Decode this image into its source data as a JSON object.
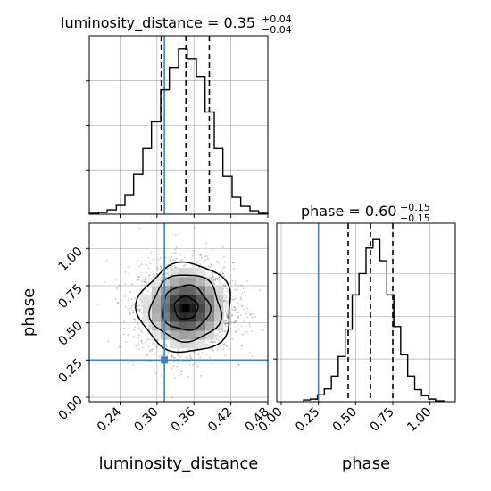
{
  "chart_data": {
    "type": "corner",
    "parameters": [
      "luminosity_distance",
      "phase"
    ],
    "titles": [
      {
        "param": "luminosity_distance",
        "label": "luminosity_distance = 0.35",
        "median": 0.35,
        "plus": "+0.04",
        "minus": "−0.04"
      },
      {
        "param": "phase",
        "label": "phase = 0.60",
        "median": 0.6,
        "plus": "+0.15",
        "minus": "−0.15"
      }
    ],
    "truths": {
      "luminosity_distance": 0.312,
      "phase": 0.25
    },
    "truth_color": "#4682b4",
    "quantiles": {
      "luminosity_distance": [
        0.307,
        0.347,
        0.385
      ],
      "phase": [
        0.45,
        0.6,
        0.75
      ]
    },
    "axes": {
      "luminosity_distance": {
        "label": "luminosity_distance",
        "range": [
          0.19,
          0.48
        ],
        "ticks": [
          0.24,
          0.3,
          0.36,
          0.42,
          0.48
        ],
        "tick_labels": [
          "0.24",
          "0.30",
          "0.36",
          "0.42",
          "0.48"
        ]
      },
      "phase": {
        "label": "phase",
        "range": [
          -0.03,
          1.17
        ],
        "ticks": [
          0.0,
          0.25,
          0.5,
          0.75,
          1.0
        ],
        "tick_labels": [
          "0.00",
          "0.25",
          "0.50",
          "0.75",
          "1.00"
        ]
      }
    },
    "hist_luminosity_distance": {
      "bin_edges": [
        0.19,
        0.205,
        0.219,
        0.234,
        0.248,
        0.262,
        0.277,
        0.291,
        0.306,
        0.32,
        0.335,
        0.349,
        0.364,
        0.378,
        0.393,
        0.407,
        0.422,
        0.436,
        0.451,
        0.465,
        0.48
      ],
      "counts": [
        1,
        2,
        5,
        10,
        22,
        45,
        74,
        104,
        140,
        165,
        186,
        175,
        155,
        115,
        74,
        43,
        19,
        9,
        4,
        1
      ]
    },
    "hist_phase": {
      "bin_edges": [
        0.15,
        0.196,
        0.243,
        0.29,
        0.337,
        0.383,
        0.43,
        0.477,
        0.523,
        0.57,
        0.617,
        0.663,
        0.71,
        0.757,
        0.803,
        0.85,
        0.897,
        0.943,
        0.99,
        1.037,
        1.1
      ],
      "counts": [
        2,
        3,
        8,
        15,
        30,
        53,
        85,
        125,
        150,
        180,
        190,
        165,
        125,
        88,
        55,
        30,
        14,
        7,
        3,
        1
      ]
    },
    "density_2d": {
      "center": [
        0.347,
        0.6
      ],
      "sigma": [
        0.038,
        0.15
      ],
      "contour_levels": [
        0.118,
        0.393,
        0.675,
        0.865
      ]
    },
    "grid": true,
    "grid_color": "#b0b0b0"
  }
}
